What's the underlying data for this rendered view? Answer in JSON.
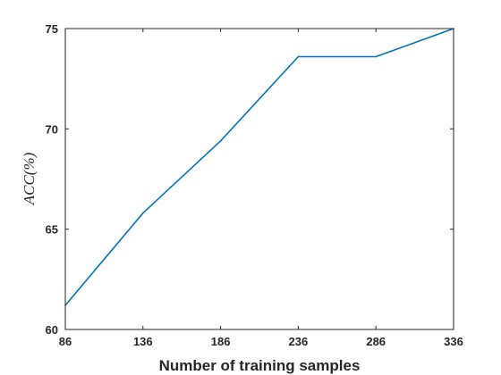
{
  "chart_data": {
    "type": "line",
    "title": "",
    "xlabel": "Number of training samples",
    "ylabel": "ACC(%)",
    "x": [
      86,
      136,
      186,
      236,
      286,
      336
    ],
    "xticks": [
      "86",
      "136",
      "186",
      "236",
      "286",
      "336"
    ],
    "yticks": [
      "60",
      "65",
      "70",
      "75"
    ],
    "xlim": [
      86,
      336
    ],
    "ylim": [
      60,
      75
    ],
    "grid": false,
    "legend": "none",
    "series": [
      {
        "values": [
          61.2,
          65.8,
          69.4,
          73.6,
          73.6,
          75.0
        ],
        "color": "#0072BD"
      }
    ],
    "colors": {
      "axis": "#262626",
      "background": "#ffffff"
    }
  }
}
